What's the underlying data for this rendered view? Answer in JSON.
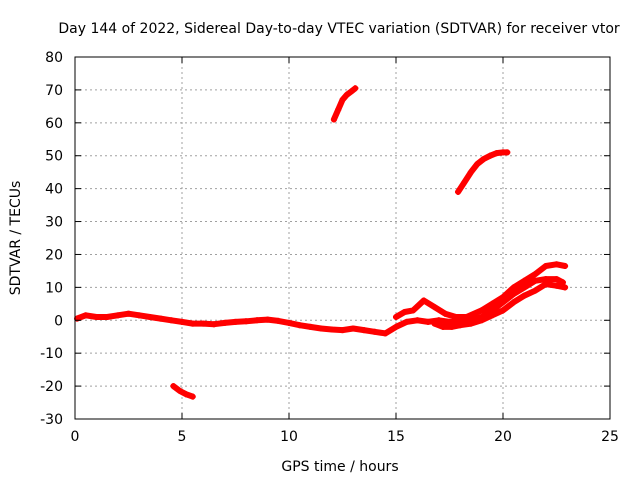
{
  "chart_data": {
    "type": "scatter",
    "title": "Day 144 of 2022, Sidereal Day-to-day VTEC variation (SDTVAR) for receiver vtor",
    "xlabel": "GPS time / hours",
    "ylabel": "SDTVAR / TECUs",
    "xlim": [
      0,
      25
    ],
    "ylim": [
      -30,
      80
    ],
    "xticks": [
      0,
      5,
      10,
      15,
      20,
      25
    ],
    "yticks": [
      -30,
      -20,
      -10,
      0,
      10,
      20,
      30,
      40,
      50,
      60,
      70,
      80
    ],
    "grid": true,
    "marker_color": "#ff0000",
    "series": [
      {
        "name": "main-band",
        "points": [
          [
            0.1,
            0.5
          ],
          [
            0.5,
            1.5
          ],
          [
            1.0,
            1.0
          ],
          [
            1.5,
            1.0
          ],
          [
            2.0,
            1.5
          ],
          [
            2.5,
            2.0
          ],
          [
            3.0,
            1.5
          ],
          [
            3.5,
            1.0
          ],
          [
            4.0,
            0.5
          ],
          [
            4.5,
            0.0
          ],
          [
            5.0,
            -0.5
          ],
          [
            5.5,
            -1.0
          ],
          [
            6.0,
            -1.0
          ],
          [
            6.5,
            -1.2
          ],
          [
            7.0,
            -0.8
          ],
          [
            7.5,
            -0.5
          ],
          [
            8.0,
            -0.3
          ],
          [
            8.5,
            0.0
          ],
          [
            9.0,
            0.2
          ],
          [
            9.5,
            -0.2
          ],
          [
            10.0,
            -0.8
          ],
          [
            10.5,
            -1.5
          ],
          [
            11.0,
            -2.0
          ],
          [
            11.5,
            -2.5
          ],
          [
            12.0,
            -2.8
          ],
          [
            12.5,
            -3.0
          ],
          [
            13.0,
            -2.5
          ],
          [
            13.5,
            -3.0
          ],
          [
            14.0,
            -3.5
          ],
          [
            14.5,
            -4.0
          ],
          [
            15.0,
            -2.0
          ],
          [
            15.5,
            -0.5
          ],
          [
            16.0,
            0.0
          ],
          [
            16.5,
            -0.5
          ],
          [
            17.0,
            0.0
          ],
          [
            17.5,
            -0.5
          ],
          [
            18.0,
            -0.5
          ],
          [
            18.5,
            0.0
          ],
          [
            19.0,
            1.0
          ],
          [
            19.5,
            3.0
          ],
          [
            20.0,
            5.5
          ],
          [
            20.5,
            8.0
          ],
          [
            21.0,
            10.0
          ],
          [
            21.5,
            12.0
          ],
          [
            22.0,
            12.5
          ],
          [
            22.5,
            12.5
          ],
          [
            22.8,
            11.5
          ]
        ]
      },
      {
        "name": "main-band-upper",
        "points": [
          [
            15.0,
            1.0
          ],
          [
            15.4,
            2.5
          ],
          [
            15.8,
            3.0
          ],
          [
            16.3,
            6.0
          ],
          [
            16.8,
            4.0
          ],
          [
            17.3,
            2.0
          ],
          [
            17.8,
            1.0
          ],
          [
            18.3,
            1.0
          ],
          [
            19.0,
            3.0
          ],
          [
            19.5,
            5.0
          ],
          [
            20.0,
            7.0
          ],
          [
            20.5,
            10.0
          ],
          [
            21.0,
            12.0
          ],
          [
            21.5,
            14.0
          ],
          [
            22.0,
            16.5
          ],
          [
            22.5,
            17.0
          ],
          [
            22.9,
            16.5
          ]
        ]
      },
      {
        "name": "main-band-lower",
        "points": [
          [
            16.8,
            -1.0
          ],
          [
            17.2,
            -2.0
          ],
          [
            17.6,
            -2.0
          ],
          [
            18.0,
            -1.5
          ],
          [
            18.5,
            -1.0
          ],
          [
            19.0,
            0.0
          ],
          [
            19.5,
            1.5
          ],
          [
            20.0,
            3.0
          ],
          [
            20.5,
            5.5
          ],
          [
            21.0,
            7.5
          ],
          [
            21.5,
            9.0
          ],
          [
            22.0,
            11.0
          ],
          [
            22.5,
            10.5
          ],
          [
            22.9,
            10.0
          ]
        ]
      },
      {
        "name": "arc-midday",
        "points": [
          [
            12.1,
            61.0
          ],
          [
            12.3,
            64.0
          ],
          [
            12.5,
            67.0
          ],
          [
            12.7,
            68.5
          ],
          [
            12.9,
            69.5
          ],
          [
            13.1,
            70.5
          ]
        ]
      },
      {
        "name": "arc-evening",
        "points": [
          [
            17.9,
            39.0
          ],
          [
            18.2,
            42.0
          ],
          [
            18.5,
            45.0
          ],
          [
            18.8,
            47.5
          ],
          [
            19.1,
            49.0
          ],
          [
            19.4,
            50.0
          ],
          [
            19.7,
            50.8
          ],
          [
            20.0,
            51.0
          ],
          [
            20.2,
            51.0
          ]
        ]
      },
      {
        "name": "dip-morning",
        "points": [
          [
            4.6,
            -20.0
          ],
          [
            4.9,
            -21.5
          ],
          [
            5.2,
            -22.5
          ],
          [
            5.5,
            -23.2
          ]
        ]
      }
    ]
  }
}
